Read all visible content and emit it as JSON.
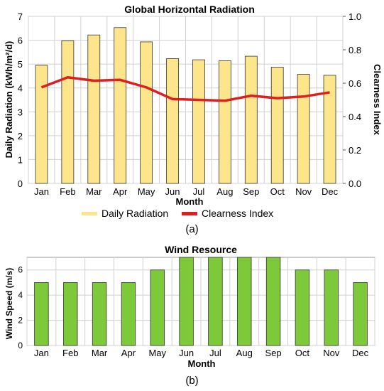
{
  "colors": {
    "radiation_bar": "#fde58c",
    "clearness_line": "#dd1f1f",
    "wind_bar": "#7dc93a",
    "bar_stroke": "#333333",
    "grid": "#d0d0d0"
  },
  "chart_data": [
    {
      "type": "bar",
      "title": "Global Horizontal Radiation",
      "xlabel": "Month",
      "ylabel": "Daily Radiation (kWh/m²/d)",
      "y2label": "Clearness Index",
      "categories": [
        "Jan",
        "Feb",
        "Mar",
        "Apr",
        "May",
        "Jun",
        "Jul",
        "Aug",
        "Sep",
        "Oct",
        "Nov",
        "Dec"
      ],
      "ylim": [
        0,
        7
      ],
      "yticks": [
        0,
        1,
        2,
        3,
        4,
        5,
        6,
        7
      ],
      "y2lim": [
        0,
        1.0
      ],
      "y2ticks": [
        "0.0",
        "0.2",
        "0.4",
        "0.6",
        "0.8",
        "1.0"
      ],
      "grid": true,
      "legend_position": "bottom",
      "series": [
        {
          "name": "Daily Radiation",
          "type": "bar",
          "values": [
            4.95,
            5.98,
            6.22,
            6.53,
            5.93,
            5.23,
            5.18,
            5.14,
            5.33,
            4.87,
            4.57,
            4.53
          ]
        },
        {
          "name": "Clearness Index",
          "type": "line",
          "axis": "right",
          "values": [
            0.575,
            0.635,
            0.615,
            0.62,
            0.575,
            0.505,
            0.5,
            0.495,
            0.525,
            0.51,
            0.52,
            0.545
          ]
        }
      ]
    },
    {
      "type": "bar",
      "title": "Wind Resource",
      "xlabel": "Month",
      "ylabel": "Wind Speed (m/s)",
      "categories": [
        "Jan",
        "Feb",
        "Mar",
        "Apr",
        "May",
        "Jun",
        "Jul",
        "Aug",
        "Sep",
        "Oct",
        "Nov",
        "Dec"
      ],
      "ylim": [
        0,
        7
      ],
      "yticks": [
        0,
        2,
        4,
        6
      ],
      "grid": true,
      "series": [
        {
          "values": [
            5,
            5,
            5,
            5,
            6,
            7,
            7,
            7,
            7,
            6,
            6,
            5
          ]
        }
      ]
    }
  ],
  "captions": [
    "(a)",
    "(b)"
  ]
}
